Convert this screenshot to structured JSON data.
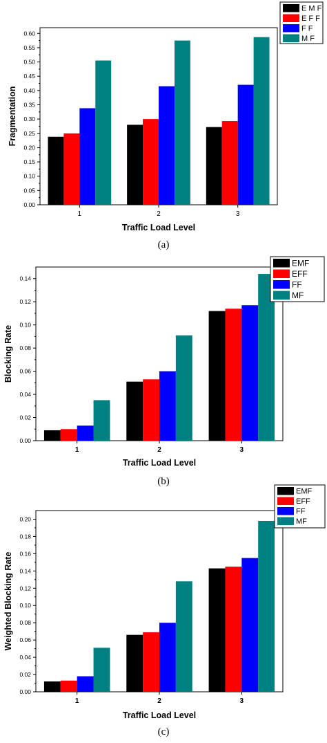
{
  "chart_data": [
    {
      "type": "bar",
      "caption": "(a)",
      "xlabel": "Traffic Load Level",
      "ylabel": "Fragmentation",
      "categories": [
        "1",
        "2",
        "3"
      ],
      "ylim": [
        0,
        0.62
      ],
      "yticks": [
        0.0,
        0.05,
        0.1,
        0.15,
        0.2,
        0.25,
        0.3,
        0.35,
        0.4,
        0.45,
        0.5,
        0.55,
        0.6
      ],
      "ytick_labels": [
        "0.00",
        "0.05",
        "0.10",
        "0.15",
        "0.20",
        "0.25",
        "0.30",
        "0.35",
        "0.40",
        "0.45",
        "0.50",
        "0.55",
        "0.60"
      ],
      "legend_position": "top-right",
      "series": [
        {
          "name": "EMF",
          "legend_label": "E M F",
          "color": "#000000",
          "values": [
            0.238,
            0.28,
            0.272
          ]
        },
        {
          "name": "EFF",
          "legend_label": "E F F",
          "color": "#ff0000",
          "values": [
            0.25,
            0.3,
            0.293
          ]
        },
        {
          "name": "FF",
          "legend_label": "F F",
          "color": "#0000ff",
          "values": [
            0.338,
            0.415,
            0.42
          ]
        },
        {
          "name": "MF",
          "legend_label": "M F",
          "color": "#008080",
          "values": [
            0.505,
            0.575,
            0.587
          ]
        }
      ]
    },
    {
      "type": "bar",
      "caption": "(b)",
      "xlabel": "Traffic Load Level",
      "ylabel": "Blocking Rate",
      "categories": [
        "1",
        "2",
        "3"
      ],
      "ylim": [
        0,
        0.15
      ],
      "yticks": [
        0.0,
        0.02,
        0.04,
        0.06,
        0.08,
        0.1,
        0.12,
        0.14
      ],
      "ytick_labels": [
        "0.00",
        "0.02",
        "0.04",
        "0.06",
        "0.08",
        "0.10",
        "0.12",
        "0.14"
      ],
      "legend_position": "top-right",
      "series": [
        {
          "name": "EMF",
          "legend_label": "EMF",
          "color": "#000000",
          "values": [
            0.009,
            0.051,
            0.112
          ]
        },
        {
          "name": "EFF",
          "legend_label": "EFF",
          "color": "#ff0000",
          "values": [
            0.01,
            0.053,
            0.114
          ]
        },
        {
          "name": "FF",
          "legend_label": "FF",
          "color": "#0000ff",
          "values": [
            0.013,
            0.06,
            0.117
          ]
        },
        {
          "name": "MF",
          "legend_label": "MF",
          "color": "#008080",
          "values": [
            0.035,
            0.091,
            0.144
          ]
        }
      ]
    },
    {
      "type": "bar",
      "caption": "(c)",
      "xlabel": "Traffic Load Level",
      "ylabel": "Weighted Blocking Rate",
      "categories": [
        "1",
        "2",
        "3"
      ],
      "ylim": [
        0,
        0.21
      ],
      "yticks": [
        0.0,
        0.02,
        0.04,
        0.06,
        0.08,
        0.1,
        0.12,
        0.14,
        0.16,
        0.18,
        0.2
      ],
      "ytick_labels": [
        "0.00",
        "0.02",
        "0.04",
        "0.06",
        "0.08",
        "0.10",
        "0.12",
        "0.14",
        "0.16",
        "0.18",
        "0.20"
      ],
      "legend_position": "top-right",
      "series": [
        {
          "name": "EMF",
          "legend_label": "EMF",
          "color": "#000000",
          "values": [
            0.012,
            0.066,
            0.143
          ]
        },
        {
          "name": "EFF",
          "legend_label": "EFF",
          "color": "#ff0000",
          "values": [
            0.013,
            0.069,
            0.145
          ]
        },
        {
          "name": "FF",
          "legend_label": "FF",
          "color": "#0000ff",
          "values": [
            0.018,
            0.08,
            0.155
          ]
        },
        {
          "name": "MF",
          "legend_label": "MF",
          "color": "#008080",
          "values": [
            0.051,
            0.128,
            0.198
          ]
        }
      ]
    }
  ]
}
